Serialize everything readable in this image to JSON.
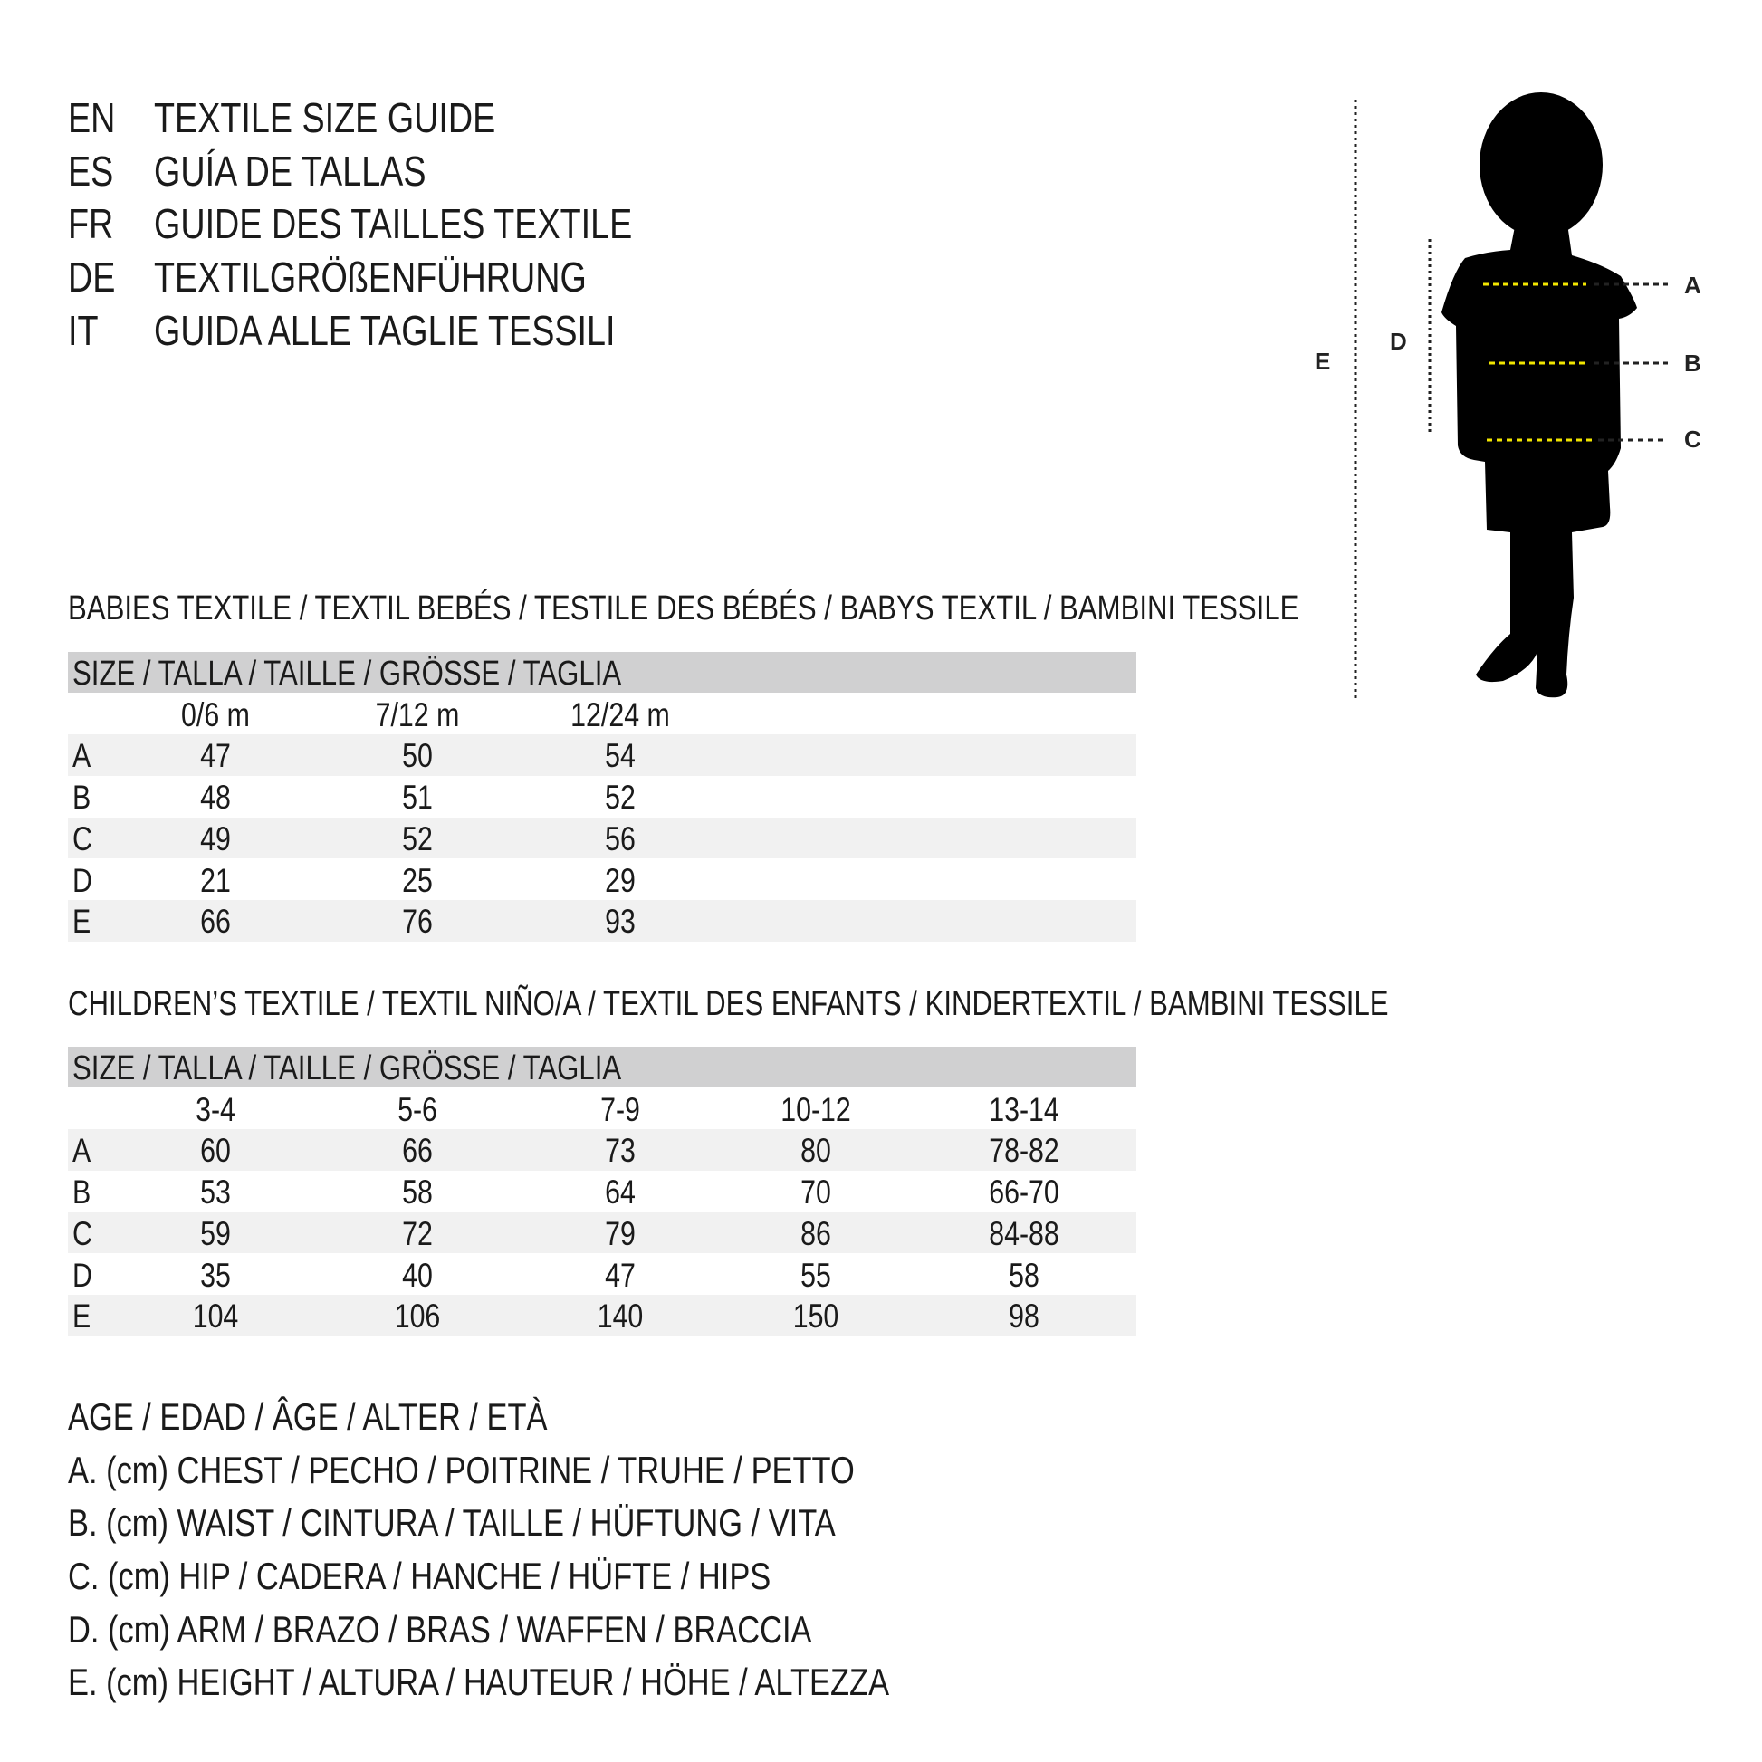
{
  "header": [
    {
      "code": "EN",
      "title": "TEXTILE SIZE GUIDE"
    },
    {
      "code": "ES",
      "title": "GUÍA DE TALLAS"
    },
    {
      "code": "FR",
      "title": "GUIDE DES TAILLES TEXTILE"
    },
    {
      "code": "DE",
      "title": "TEXTILGRÖßENFÜHRUNG"
    },
    {
      "code": "IT",
      "title": "GUIDA ALLE TAGLIE TESSILI"
    }
  ],
  "babies": {
    "title": "BABIES TEXTILE / TEXTIL BEBÉS / TESTILE DES BÉBÉS / BABYS TEXTIL / BAMBINI TESSILE",
    "size_header": "SIZE / TALLA / TAILLE / GRÖSSE / TAGLIA",
    "columns": [
      "0/6 m",
      "7/12 m",
      "12/24 m"
    ],
    "rows": [
      {
        "label": "A",
        "values": [
          "47",
          "50",
          "54"
        ]
      },
      {
        "label": "B",
        "values": [
          "48",
          "51",
          "52"
        ]
      },
      {
        "label": "C",
        "values": [
          "49",
          "52",
          "56"
        ]
      },
      {
        "label": "D",
        "values": [
          "21",
          "25",
          "29"
        ]
      },
      {
        "label": "E",
        "values": [
          "66",
          "76",
          "93"
        ]
      }
    ]
  },
  "children": {
    "title": "CHILDREN’S TEXTILE / TEXTIL NIÑO/A / TEXTIL DES ENFANTS / KINDERTEXTIL / BAMBINI TESSILE",
    "size_header": "SIZE / TALLA / TAILLE / GRÖSSE / TAGLIA",
    "columns": [
      "3-4",
      "5-6",
      "7-9",
      "10-12",
      "13-14"
    ],
    "rows": [
      {
        "label": "A",
        "values": [
          "60",
          "66",
          "73",
          "80",
          "78-82"
        ]
      },
      {
        "label": "B",
        "values": [
          "53",
          "58",
          "64",
          "70",
          "66-70"
        ]
      },
      {
        "label": "C",
        "values": [
          "59",
          "72",
          "79",
          "86",
          "84-88"
        ]
      },
      {
        "label": "D",
        "values": [
          "35",
          "40",
          "47",
          "55",
          "58"
        ]
      },
      {
        "label": "E",
        "values": [
          "104",
          "106",
          "140",
          "150",
          "98"
        ]
      }
    ]
  },
  "legend": [
    "AGE / EDAD / ÂGE / ALTER / ETÀ",
    "A. (cm) CHEST / PECHO / POITRINE / TRUHE / PETTO",
    "B. (cm) WAIST / CINTURA / TAILLE / HÜFTUNG / VITA",
    "C. (cm) HIP / CADERA / HANCHE / HÜFTE / HIPS",
    "D. (cm) ARM / BRAZO / BRAS / WAFFEN / BRACCIA",
    "E. (cm) HEIGHT / ALTURA / HAUTEUR / HÖHE / ALTEZZA"
  ],
  "figure": {
    "labels": {
      "A": "A",
      "B": "B",
      "C": "C",
      "D": "D",
      "E": "E"
    },
    "colors": {
      "silhouette": "#000000",
      "measure_line": "#f2e600",
      "guide_line": "#222222"
    }
  }
}
